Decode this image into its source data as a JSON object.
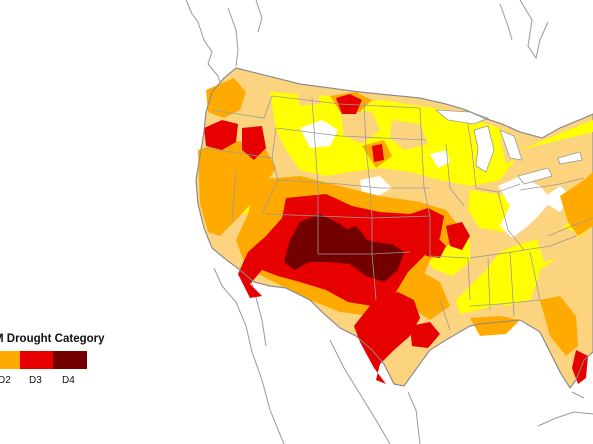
{
  "legend": {
    "title": "M Drought Category",
    "items": [
      {
        "label": "D2",
        "color": "#ffaa00"
      },
      {
        "label": "D3",
        "color": "#e60000"
      },
      {
        "label": "D4",
        "color": "#730000"
      }
    ]
  },
  "colors": {
    "background": "#ffffff",
    "none": "#ffffff",
    "d0": "#ffff00",
    "d1": "#fcd37f",
    "d2": "#ffaa00",
    "d3": "#e60000",
    "d4": "#730000",
    "outline": "#8a8a8a"
  }
}
